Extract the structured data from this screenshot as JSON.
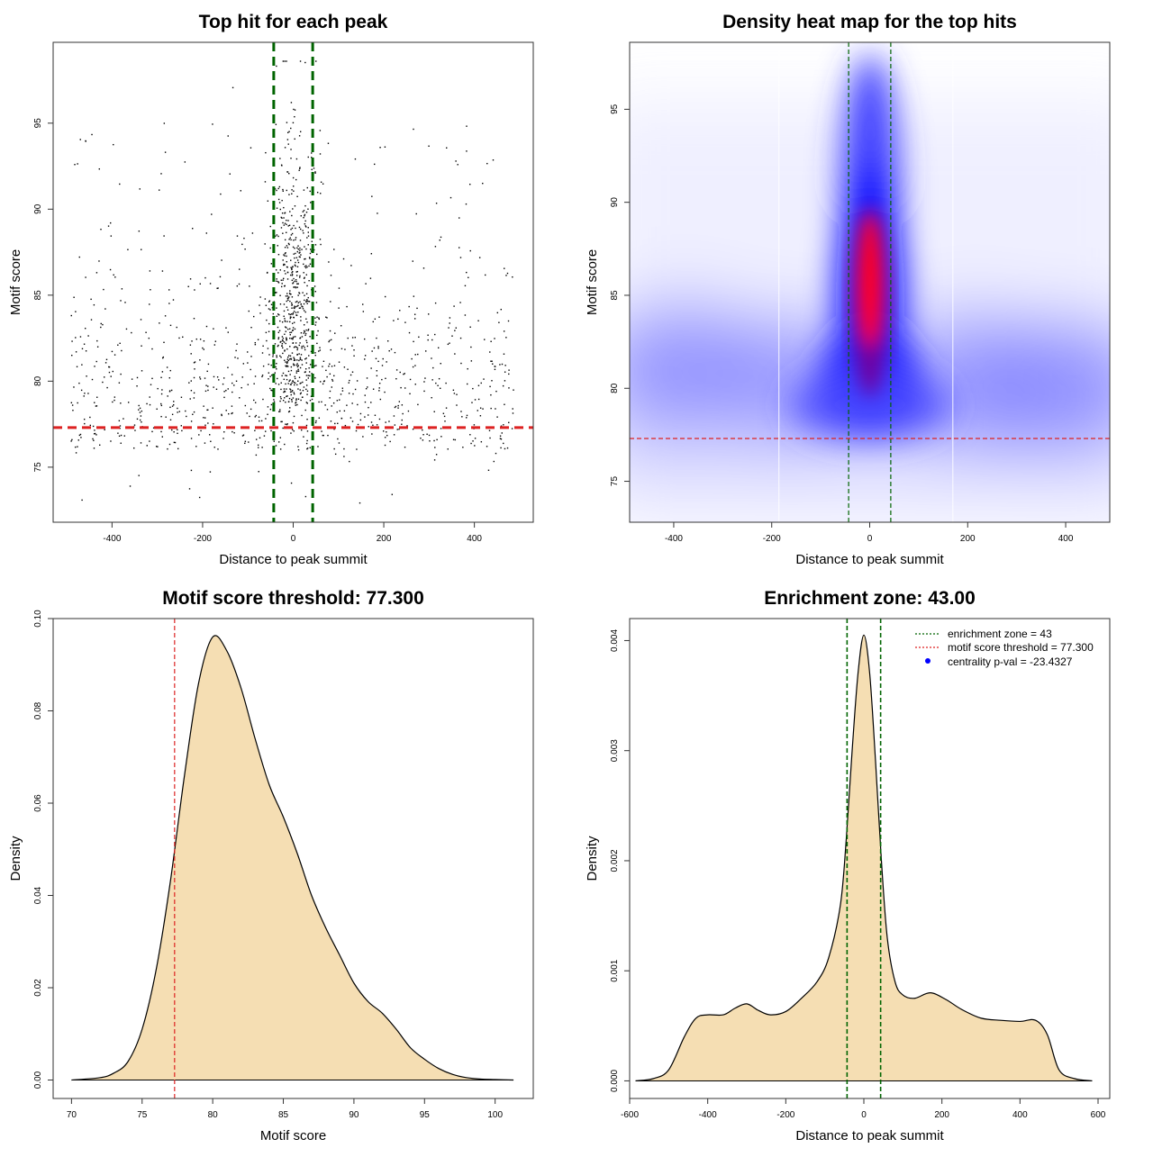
{
  "chart_data": [
    {
      "type": "scatter",
      "title": "Top hit for each peak",
      "xlabel": "Distance to peak summit",
      "ylabel": "Motif score",
      "xlim": [
        -530,
        530
      ],
      "ylim": [
        71.8,
        99.7
      ],
      "xticks": [
        -400,
        -200,
        0,
        200,
        400
      ],
      "yticks": [
        75,
        80,
        85,
        90,
        95
      ],
      "vlines": [
        -43,
        43
      ],
      "hlines": [
        77.3
      ],
      "vline_color": "#006400",
      "hline_color": "#dd2222",
      "point_color": "#000000",
      "points": {
        "n_background": 900,
        "n_center": 620,
        "x_range": [
          -490,
          490
        ],
        "y_range": [
          72.8,
          98.6
        ],
        "center_sd": 28,
        "note": "scatter cloud of motif top hits"
      }
    },
    {
      "type": "heatmap",
      "title": "Density heat map for the top hits",
      "xlabel": "Distance to peak summit",
      "ylabel": "Motif score",
      "xlim": [
        -490,
        490
      ],
      "ylim": [
        72.8,
        98.6
      ],
      "xticks": [
        -400,
        -200,
        0,
        200,
        400
      ],
      "yticks": [
        75,
        80,
        85,
        90,
        95
      ],
      "vlines": [
        -43,
        43
      ],
      "hlines": [
        77.3
      ],
      "colors": [
        "#ffffff",
        "#0000ff",
        "#ff0000"
      ],
      "peak": {
        "x": 0,
        "y": 86
      }
    },
    {
      "type": "area",
      "title": "Motif score threshold: 77.300",
      "xlabel": "Motif score",
      "ylabel": "Density",
      "xlim": [
        68.7,
        102.7
      ],
      "ylim": [
        -0.004,
        0.1
      ],
      "xticks": [
        70,
        75,
        80,
        85,
        90,
        95,
        100
      ],
      "yticks": [
        0.0,
        0.02,
        0.04,
        0.06,
        0.08,
        0.1
      ],
      "ytick_labels": [
        "0.00",
        "0.02",
        "0.04",
        "0.06",
        "0.08",
        "0.10"
      ],
      "vlines": [
        77.3
      ],
      "fill": "#f5deb3",
      "x": [
        70,
        72,
        73,
        74,
        75,
        76,
        77,
        78,
        79,
        80,
        81,
        82,
        83,
        84,
        85,
        86,
        87,
        88,
        89,
        90,
        91,
        92,
        93,
        94,
        95,
        96,
        97,
        98,
        99,
        100,
        101.3
      ],
      "y": [
        0.0,
        0.0005,
        0.0015,
        0.004,
        0.011,
        0.024,
        0.043,
        0.066,
        0.086,
        0.096,
        0.093,
        0.085,
        0.074,
        0.064,
        0.057,
        0.049,
        0.04,
        0.033,
        0.027,
        0.021,
        0.017,
        0.0145,
        0.011,
        0.007,
        0.0045,
        0.0025,
        0.0012,
        0.0005,
        0.0002,
        0.0001,
        0.0
      ]
    },
    {
      "type": "area",
      "title": "Enrichment zone: 43.00",
      "xlabel": "Distance to peak summit",
      "ylabel": "Density",
      "xlim": [
        -600,
        630
      ],
      "ylim": [
        -0.00016,
        0.0042
      ],
      "xticks": [
        -600,
        -400,
        -200,
        0,
        200,
        400,
        600
      ],
      "yticks": [
        0.0,
        0.001,
        0.002,
        0.003,
        0.004
      ],
      "ytick_labels": [
        "0.000",
        "0.001",
        "0.002",
        "0.003",
        "0.004"
      ],
      "vlines": [
        -43,
        43
      ],
      "fill": "#f5deb3",
      "x": [
        -585,
        -540,
        -500,
        -460,
        -430,
        -400,
        -360,
        -330,
        -300,
        -270,
        -240,
        -200,
        -160,
        -120,
        -90,
        -60,
        -45,
        -30,
        -15,
        0,
        15,
        30,
        45,
        60,
        80,
        100,
        130,
        170,
        210,
        250,
        300,
        350,
        400,
        440,
        470,
        500,
        540,
        585
      ],
      "y": [
        0.0,
        2e-05,
        0.0001,
        0.0004,
        0.00057,
        0.0006,
        0.0006,
        0.00066,
        0.0007,
        0.00064,
        0.0006,
        0.00063,
        0.00075,
        0.0009,
        0.00112,
        0.0016,
        0.0022,
        0.003,
        0.0037,
        0.00405,
        0.0037,
        0.0029,
        0.002,
        0.0013,
        0.0009,
        0.00078,
        0.00075,
        0.0008,
        0.00074,
        0.00065,
        0.00057,
        0.00055,
        0.00054,
        0.00055,
        0.00042,
        0.0001,
        2e-05,
        0.0
      ]
    }
  ],
  "legend": {
    "items": [
      {
        "label": "enrichment zone = 43",
        "color": "#006400",
        "marker": "dotted-line"
      },
      {
        "label": "motif score threshold = 77.300",
        "color": "#dd2222",
        "marker": "dotted-line"
      },
      {
        "label": "centrality p-val = -23.4327",
        "color": "#0000ff",
        "marker": "dot"
      }
    ]
  }
}
